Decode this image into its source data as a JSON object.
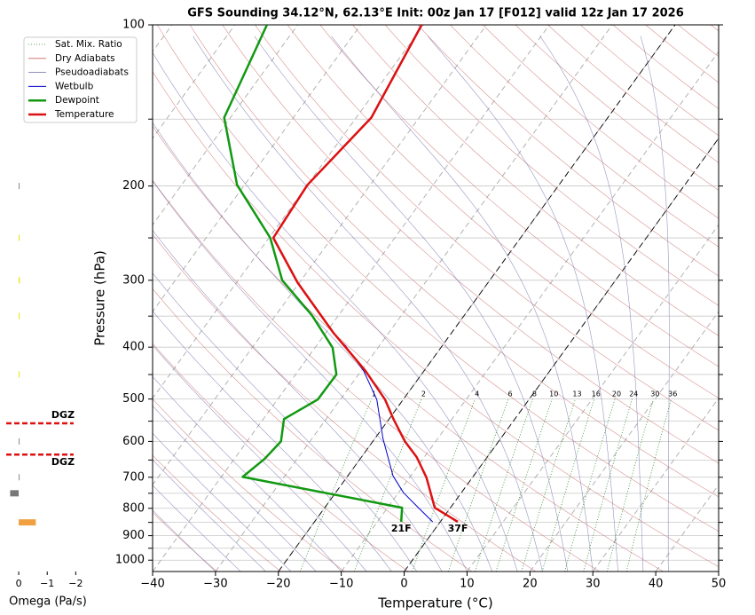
{
  "chart_data": [
    {
      "type": "skewt",
      "title": "GFS Sounding 34.12°N, 62.13°E Init: 00z Jan 17 [F012] valid 12z Jan 17 2026",
      "x_label": "Temperature (°C)",
      "y_label": "Pressure (hPa)",
      "xlim": [
        -40,
        50
      ],
      "xticks": [
        {
          "value": -40,
          "label": "−40"
        },
        {
          "value": -30,
          "label": "−30"
        },
        {
          "value": -20,
          "label": "−20"
        },
        {
          "value": -10,
          "label": "−10"
        },
        0,
        10,
        20,
        30,
        40,
        50
      ],
      "ylim": [
        1050,
        100
      ],
      "log_y": true,
      "yticks": [
        100,
        200,
        300,
        400,
        500,
        600,
        700,
        800,
        900,
        1000
      ],
      "yticks_minor": [
        150,
        250,
        350,
        450,
        550,
        650,
        750,
        850,
        950
      ],
      "grid": true,
      "highlight_isotherms": [
        -20,
        0
      ],
      "legend": "upper left",
      "mixing_ratios": [
        1,
        2,
        4,
        6,
        8,
        10,
        13,
        16,
        20,
        24,
        30,
        36
      ],
      "reference_lines": [
        {
          "name": "Sat. Mix. Ratio",
          "color": "#2e8b2e"
        },
        {
          "name": "Dry Adiabats",
          "color": "#c86464"
        },
        {
          "name": "Pseudoadiabats",
          "color": "#6a6aa8"
        }
      ],
      "series": [
        {
          "name": "Wetbulb",
          "color": "#0000cc",
          "pressure": [
            848,
            798,
            748,
            696,
            593,
            501,
            443,
            398,
            376,
            303,
            250,
            199,
            149,
            100
          ],
          "values": [
            -1.2,
            -5.1,
            -9.2,
            -12.8,
            -18.7,
            -24.2,
            -29.6,
            -35.3,
            -38.9,
            -50.4,
            -59.4,
            -60.1,
            -57.7,
            -60.4
          ]
        },
        {
          "name": "Dewpoint",
          "color": "#119911",
          "surface_label": "21F",
          "pressure": [
            848,
            798,
            699,
            647,
            600,
            545,
            501,
            450,
            401,
            349,
            300,
            250,
            199,
            149,
            100
          ],
          "values": [
            -6.2,
            -7.7,
            -36.6,
            -35.2,
            -34.6,
            -36.7,
            -33.6,
            -33.5,
            -37.2,
            -44.2,
            -53.0,
            -59.8,
            -71.2,
            -81.0,
            -84.9
          ]
        },
        {
          "name": "Temperature",
          "color": "#dd1111",
          "surface_label": "37F",
          "pressure": [
            848,
            798,
            701,
            642,
            600,
            545,
            501,
            443,
            376,
            303,
            250,
            199,
            149,
            100
          ],
          "values": [
            2.8,
            -2.5,
            -7.3,
            -11.2,
            -14.9,
            -19.3,
            -22.9,
            -29.3,
            -38.8,
            -50.3,
            -59.3,
            -60.0,
            -57.6,
            -60.3
          ]
        }
      ]
    },
    {
      "type": "omega",
      "x_label": "Omega (Pa/s)",
      "xlim": [
        0.5,
        -2.3
      ],
      "xticks": [
        0,
        {
          "value": -1,
          "label": "−1"
        },
        {
          "value": -2,
          "label": "−2"
        }
      ],
      "ylim": [
        1050,
        100
      ],
      "pressure": [
        200,
        250,
        300,
        350,
        450,
        600,
        700,
        750,
        850
      ],
      "values": [
        -0.02,
        -0.02,
        -0.04,
        -0.02,
        -0.02,
        -0.02,
        -0.03,
        0.3,
        -0.6
      ],
      "colors": [
        "#888888",
        "#f0e000",
        "#f0e000",
        "#f0e000",
        "#f0e000",
        "#888888",
        "#888888",
        "#777777",
        "#f0a040"
      ],
      "dgz_color": "#dd1111",
      "dgz": [
        {
          "pressure": 555,
          "label": "DGZ"
        },
        {
          "pressure": 635,
          "label": "DGZ"
        }
      ]
    }
  ]
}
